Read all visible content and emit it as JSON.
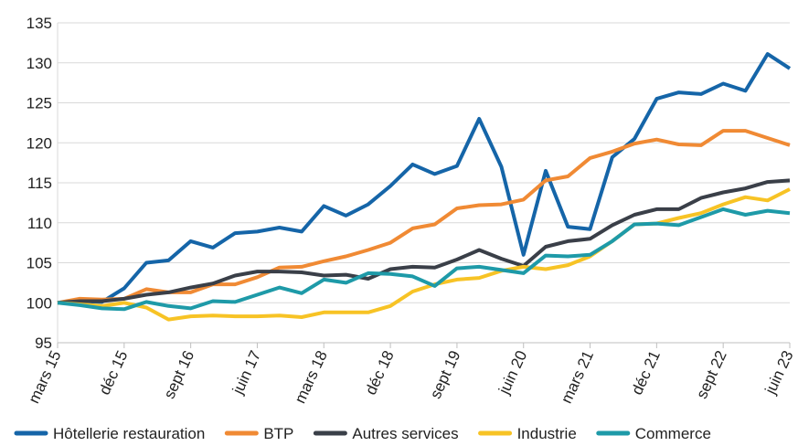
{
  "chart_data": {
    "type": "line",
    "categories": [
      "mars 15",
      null,
      null,
      "déc 15",
      null,
      null,
      "sept 16",
      null,
      null,
      "juin 17",
      null,
      null,
      "mars 18",
      null,
      null,
      "déc 18",
      null,
      null,
      "sept 19",
      null,
      null,
      "juin 20",
      null,
      null,
      "mars 21",
      null,
      null,
      "déc 21",
      null,
      null,
      "sept 22",
      null,
      null,
      "juin 23"
    ],
    "ylim": [
      95,
      135
    ],
    "yticks": [
      95,
      100,
      105,
      110,
      115,
      120,
      125,
      130,
      135
    ],
    "grid": true,
    "legend": "bottom",
    "series": [
      {
        "name": "Hôtellerie restauration",
        "color": "#1565a8",
        "values": [
          100,
          100.2,
          100.1,
          101.8,
          105,
          105.3,
          107.7,
          106.9,
          108.7,
          108.9,
          109.4,
          108.9,
          112.1,
          110.9,
          112.3,
          114.6,
          117.3,
          116.1,
          117.1,
          123,
          117,
          106,
          116.5,
          109.5,
          109.2,
          118.2,
          120.5,
          125.5,
          126.3,
          126.1,
          127.4,
          126.5,
          131.1,
          129.3
        ]
      },
      {
        "name": "BTP",
        "color": "#f08a34",
        "values": [
          100,
          100.5,
          100.4,
          100.5,
          101.7,
          101.3,
          101.3,
          102.3,
          102.3,
          103.2,
          104.4,
          104.5,
          105.2,
          105.8,
          106.6,
          107.5,
          109.3,
          109.8,
          111.8,
          112.2,
          112.3,
          112.9,
          115.3,
          115.8,
          118.1,
          118.9,
          119.9,
          120.4,
          119.8,
          119.7,
          121.5,
          121.5,
          120.6,
          119.7
        ]
      },
      {
        "name": "Autres services",
        "color": "#3a3f48",
        "values": [
          100,
          100.2,
          100.2,
          100.5,
          101,
          101.3,
          101.9,
          102.4,
          103.4,
          103.9,
          103.9,
          103.8,
          103.4,
          103.5,
          103,
          104.2,
          104.5,
          104.4,
          105.4,
          106.6,
          105.5,
          104.6,
          107,
          107.7,
          108,
          109.7,
          111,
          111.7,
          111.7,
          113.1,
          113.8,
          114.3,
          115.1,
          115.3
        ]
      },
      {
        "name": "Industrie",
        "color": "#f7c325",
        "values": [
          100,
          99.8,
          99.6,
          100,
          99.4,
          97.9,
          98.3,
          98.4,
          98.3,
          98.3,
          98.4,
          98.2,
          98.8,
          98.8,
          98.8,
          99.6,
          101.4,
          102.3,
          102.9,
          103.1,
          104,
          104.5,
          104.2,
          104.7,
          105.8,
          107.7,
          109.8,
          109.9,
          110.6,
          111.2,
          112.3,
          113.2,
          112.8,
          114.2
        ]
      },
      {
        "name": "Commerce",
        "color": "#1e9aa8",
        "values": [
          100,
          99.7,
          99.3,
          99.2,
          100.1,
          99.6,
          99.3,
          100.2,
          100.1,
          101,
          101.9,
          101.2,
          102.9,
          102.5,
          103.7,
          103.6,
          103.3,
          102.1,
          104.3,
          104.5,
          104.1,
          103.7,
          105.9,
          105.8,
          106,
          107.7,
          109.8,
          109.9,
          109.7,
          110.7,
          111.7,
          111,
          111.5,
          111.2
        ]
      }
    ]
  }
}
